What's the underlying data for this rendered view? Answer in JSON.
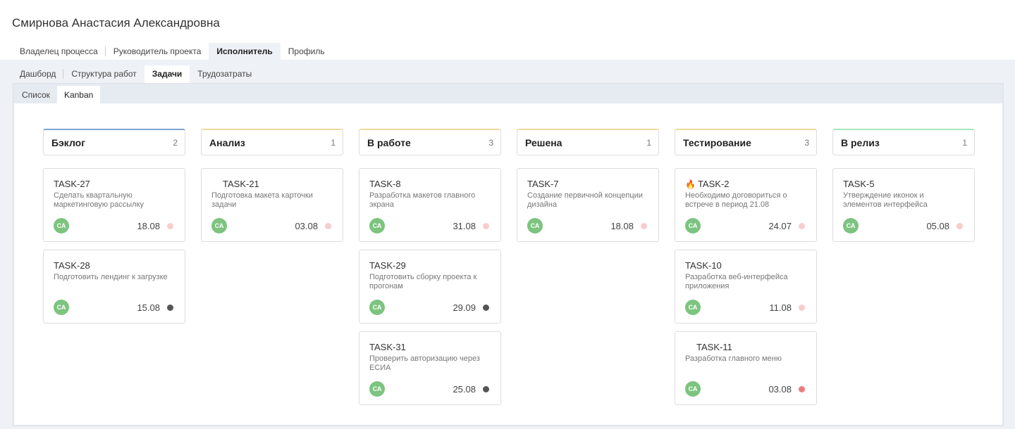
{
  "user_name": "Смирнова Анастасия Александровна",
  "role_tabs": [
    {
      "label": "Владелец процесса"
    },
    {
      "label": "Руководитель проекта"
    },
    {
      "label": "Исполнитель",
      "active": true
    },
    {
      "label": "Профиль"
    }
  ],
  "section_tabs": [
    {
      "label": "Дашборд"
    },
    {
      "label": "Структура работ"
    },
    {
      "label": "Задачи",
      "active": true
    },
    {
      "label": "Трудозатраты"
    }
  ],
  "view_tabs": [
    {
      "label": "Список"
    },
    {
      "label": "Kanban",
      "active": true
    }
  ],
  "colors": {
    "backlog": "#7ea6cf",
    "yellow": "#f0db9b",
    "release": "#a9e5b9",
    "dot_light": "#f8cdcd",
    "dot_dark": "#555555",
    "dot_red": "#ee7b7b",
    "avatar": "#7cc47f"
  },
  "columns": [
    {
      "name": "Бэклог",
      "count": "2",
      "color": "#7ea6cf",
      "cards": [
        {
          "id": "TASK-27",
          "desc": "Сделать квартальную маркетинговую рассылку",
          "avatar": "СА",
          "date": "18.08",
          "dot": "#f8cdcd"
        },
        {
          "id": "TASK-28",
          "desc": "Подготовить лендинг к загрузке",
          "avatar": "СА",
          "date": "15.08",
          "dot": "#555555"
        }
      ]
    },
    {
      "name": "Анализ",
      "count": "1",
      "color": "#f0db9b",
      "cards": [
        {
          "id": "TASK-21",
          "indent": true,
          "desc": "Подготовка макета карточки задачи",
          "avatar": "СА",
          "date": "03.08",
          "dot": "#f8cdcd"
        }
      ]
    },
    {
      "name": "В работе",
      "count": "3",
      "color": "#f0db9b",
      "cards": [
        {
          "id": "TASK-8",
          "desc": "Разработка макетов главного экрана",
          "avatar": "СА",
          "date": "31.08",
          "dot": "#f8cdcd"
        },
        {
          "id": "TASK-29",
          "desc": "Подготовить сборку проекта к прогонам",
          "avatar": "СА",
          "date": "29.09",
          "dot": "#555555"
        },
        {
          "id": "TASK-31",
          "desc": "Проверить авторизацию через ЕСИА",
          "avatar": "СА",
          "date": "25.08",
          "dot": "#555555"
        }
      ]
    },
    {
      "name": "Решена",
      "count": "1",
      "color": "#f0db9b",
      "cards": [
        {
          "id": "TASK-7",
          "desc": "Создание первичной концепции дизайна",
          "avatar": "СА",
          "date": "18.08",
          "dot": "#f8cdcd"
        }
      ]
    },
    {
      "name": "Тестирование",
      "count": "3",
      "color": "#f0db9b",
      "cards": [
        {
          "id": "TASK-2",
          "icon": "fire-icon",
          "desc": "Необходимо договориться о встрече в период 21.08",
          "avatar": "СА",
          "date": "24.07",
          "dot": "#f8cdcd"
        },
        {
          "id": "TASK-10",
          "desc": "Разработка веб-интерфейса приложения",
          "avatar": "СА",
          "date": "11.08",
          "dot": "#f8cdcd"
        },
        {
          "id": "TASK-11",
          "indent": true,
          "desc": "Разработка главного меню",
          "avatar": "СА",
          "date": "03.08",
          "dot": "#ee7b7b"
        }
      ]
    },
    {
      "name": "В релиз",
      "count": "1",
      "color": "#a9e5b9",
      "cards": [
        {
          "id": "TASK-5",
          "desc": "Утверждение иконок и элементов интерфейса",
          "avatar": "СА",
          "date": "05.08",
          "dot": "#f8cdcd"
        }
      ]
    }
  ]
}
